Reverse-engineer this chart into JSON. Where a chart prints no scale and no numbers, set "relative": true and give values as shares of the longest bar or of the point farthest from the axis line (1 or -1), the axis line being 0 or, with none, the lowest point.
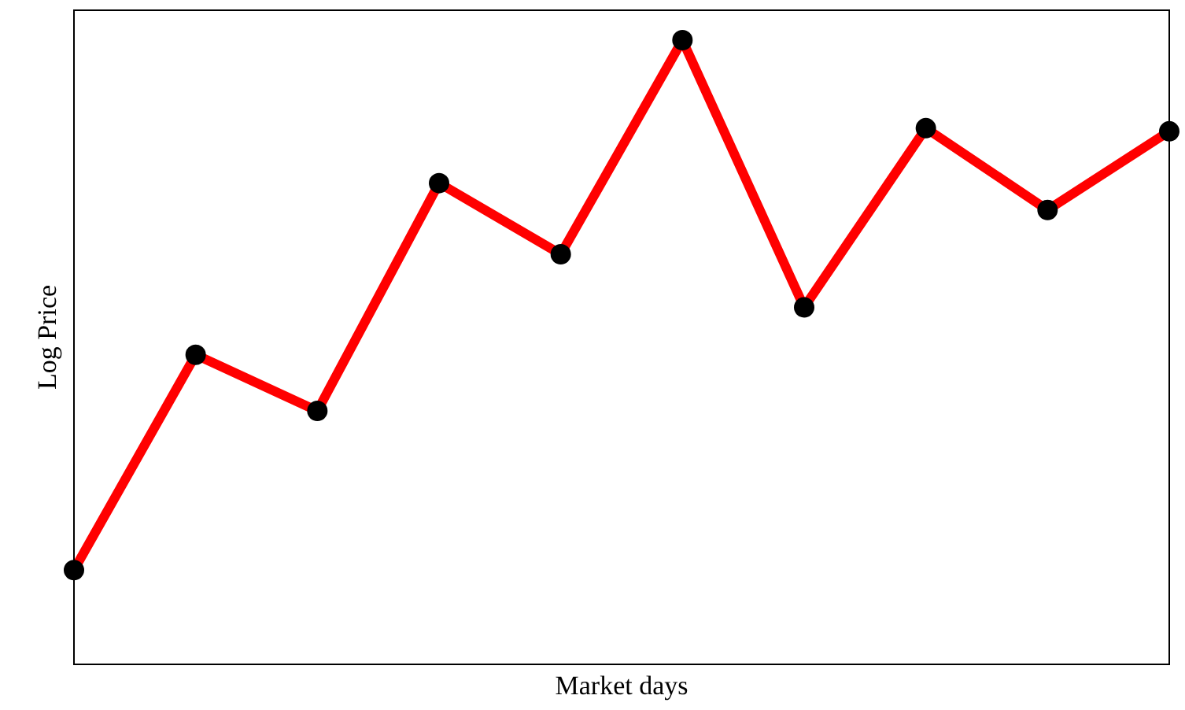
{
  "chart_data": {
    "type": "line",
    "xlabel": "Market days",
    "ylabel": "Log Price",
    "relative": true,
    "categories": [
      null,
      null,
      null,
      null,
      null,
      null,
      null,
      null,
      null,
      null
    ],
    "series": [
      {
        "color": "#ff0000",
        "values": [
          0.151,
          0.496,
          0.406,
          0.771,
          0.657,
          1,
          0.572,
          0.859,
          0.728,
          0.854
        ]
      }
    ],
    "marker": "circle",
    "line_style": "solid"
  }
}
